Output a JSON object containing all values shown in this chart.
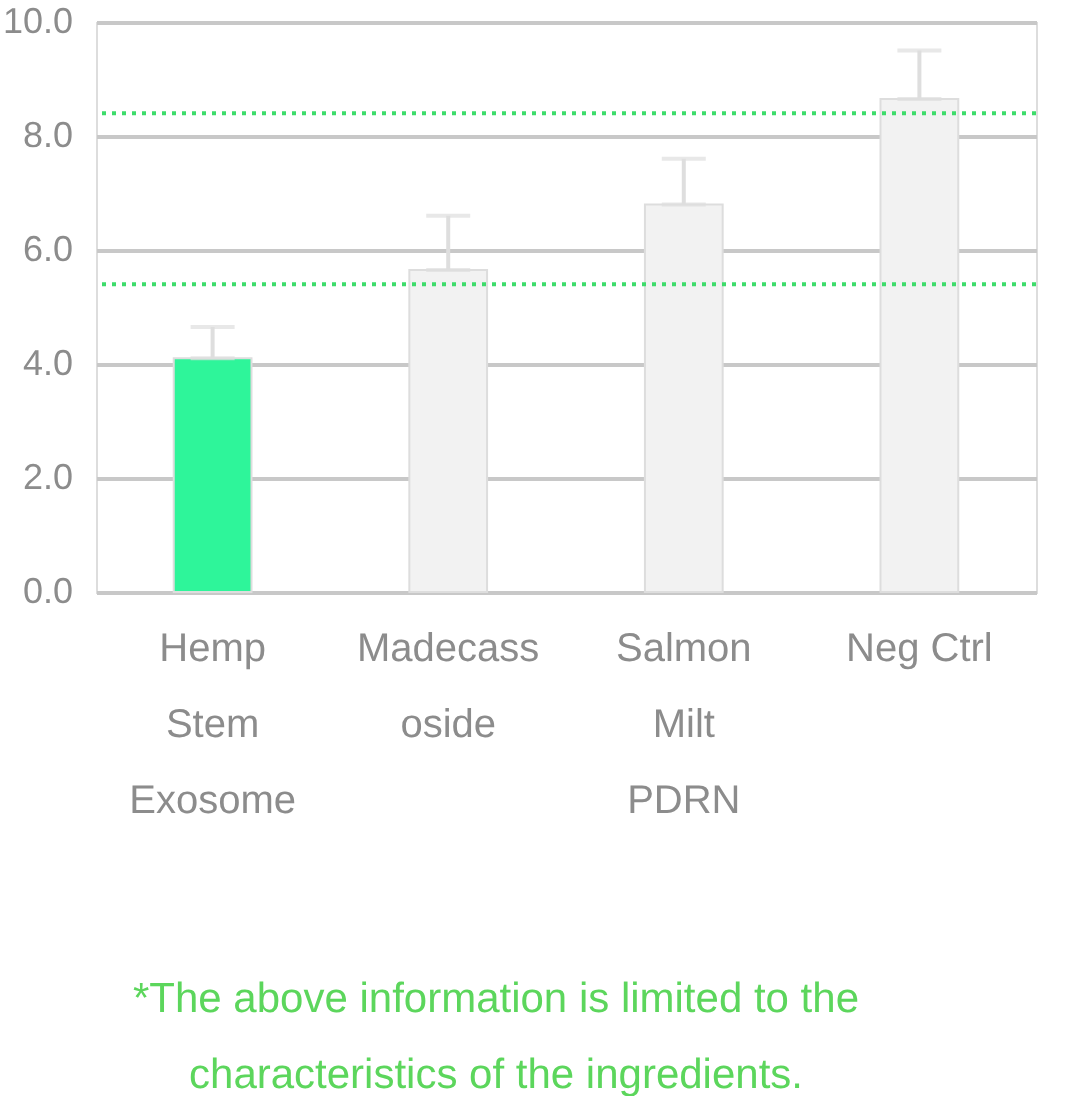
{
  "chart_data": {
    "type": "bar",
    "categories": [
      "Hemp Stem Exosome",
      "Madecassoside",
      "Salmon Milt PDRN",
      "Neg Ctrl"
    ],
    "values": [
      4.1,
      5.65,
      6.8,
      8.65
    ],
    "colors": [
      "#2ef59a",
      "#f2f2f2",
      "#f2f2f2",
      "#f2f2f2"
    ],
    "errors": [
      [
        4.1,
        4.65
      ],
      [
        5.65,
        6.6
      ],
      [
        6.8,
        7.6
      ],
      [
        8.65,
        9.5
      ]
    ],
    "ylim": [
      0,
      10
    ],
    "yticks": [
      {
        "value": 0,
        "label": "0.0"
      },
      {
        "value": 2,
        "label": "2.0"
      },
      {
        "value": 4,
        "label": "4.0"
      },
      {
        "value": 6,
        "label": "6.0"
      },
      {
        "value": 8,
        "label": "8.0"
      },
      {
        "value": 10,
        "label": "10.0"
      }
    ],
    "grid": "y",
    "ref_lines": [
      {
        "axis": "y",
        "value": 5.4,
        "color": "#3ddc6a",
        "line_style": "dotted"
      },
      {
        "axis": "y",
        "value": 8.4,
        "color": "#3ddc6a",
        "line_style": "dotted"
      }
    ],
    "annotations": [
      "*The above information is limited to the characteristics of the ingredients."
    ]
  }
}
